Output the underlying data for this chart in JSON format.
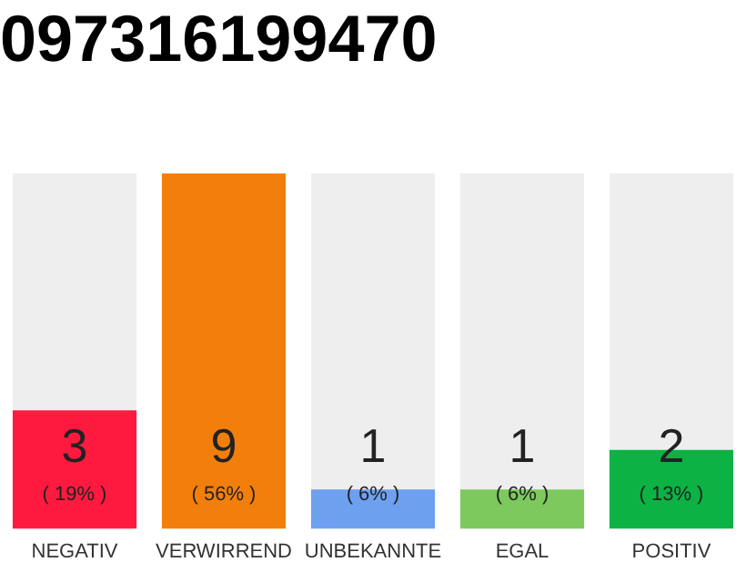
{
  "chart_data": {
    "type": "bar",
    "title": "097316199470",
    "categories": [
      "NEGATIV",
      "VERWIRREND",
      "UNBEKANNTE",
      "EGAL",
      "POSITIV"
    ],
    "values": [
      3,
      9,
      1,
      1,
      2
    ],
    "colors": [
      "#fe1a3f",
      "#f27f0c",
      "#6ea0f0",
      "#7dc95e",
      "#0cb243"
    ],
    "value_labels": [
      "3\n( 19% )",
      "9\n( 56% )",
      "1\n( 6% )",
      "1\n( 6% )",
      "2\n( 13% )"
    ],
    "ylim": [
      0,
      9
    ],
    "grid": false,
    "legend": false,
    "tick_labels": "x"
  }
}
